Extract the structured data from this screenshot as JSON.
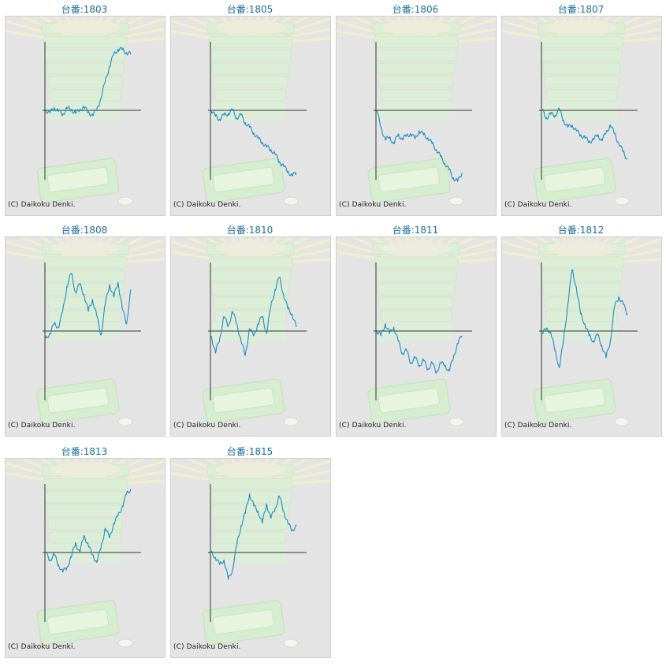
{
  "colors": {
    "title": "#1d6f9a",
    "line": "#1a8ec6",
    "axis": "#333333",
    "background": "#e4e4e4"
  },
  "copyright": "(C) Daikoku Denki.",
  "chart_data": [
    {
      "type": "line",
      "title": "台番:1803",
      "x": [
        0,
        5,
        10,
        15,
        20,
        25,
        30,
        35,
        40,
        45,
        50,
        55,
        60,
        65,
        70,
        75,
        80,
        85,
        90,
        95,
        100
      ],
      "y": [
        0,
        -0.5,
        0.6,
        -0.2,
        -0.8,
        0.4,
        0.2,
        -0.6,
        0.1,
        0.7,
        -0.4,
        -1.0,
        0.2,
        2.5,
        6.0,
        9.0,
        11.5,
        12.5,
        12.4,
        11.8,
        11.5
      ]
    },
    {
      "type": "line",
      "title": "台番:1805",
      "x": [
        0,
        5,
        10,
        15,
        20,
        25,
        30,
        35,
        40,
        45,
        50,
        55,
        60,
        65,
        70,
        75,
        80,
        85,
        90,
        95,
        100
      ],
      "y": [
        0,
        -1.2,
        -1.8,
        -1.0,
        -0.6,
        0.0,
        -1.5,
        -1.0,
        -2.5,
        -3.5,
        -4.6,
        -5.8,
        -6.5,
        -7.5,
        -8.0,
        -9.0,
        -10.5,
        -11.4,
        -12.5,
        -13.4,
        -12.8
      ]
    },
    {
      "type": "line",
      "title": "台番:1806",
      "x": [
        0,
        5,
        10,
        15,
        20,
        25,
        30,
        35,
        40,
        45,
        50,
        55,
        60,
        65,
        70,
        75,
        80,
        85,
        90,
        95,
        100
      ],
      "y": [
        0,
        -3.5,
        -6.0,
        -5.5,
        -6.8,
        -5.0,
        -5.8,
        -5.2,
        -4.8,
        -5.8,
        -4.2,
        -5.0,
        -5.6,
        -6.8,
        -8.0,
        -9.5,
        -10.8,
        -12.2,
        -13.8,
        -14.6,
        -12.8
      ]
    },
    {
      "type": "line",
      "title": "台番:1807",
      "x": [
        0,
        5,
        10,
        15,
        20,
        25,
        30,
        35,
        40,
        45,
        50,
        55,
        60,
        65,
        70,
        75,
        80,
        85,
        90,
        95,
        100
      ],
      "y": [
        0,
        -1.5,
        -0.8,
        -1.0,
        0.2,
        -2.0,
        -3.5,
        -3.0,
        -4.2,
        -5.0,
        -5.6,
        -6.4,
        -6.0,
        -5.0,
        -6.2,
        -4.5,
        -3.0,
        -4.8,
        -6.8,
        -8.5,
        -10.0
      ]
    },
    {
      "type": "line",
      "title": "台番:1808",
      "x": [
        0,
        5,
        10,
        15,
        20,
        25,
        30,
        35,
        40,
        45,
        50,
        55,
        60,
        65,
        70,
        75,
        80,
        85,
        90,
        95,
        100
      ],
      "y": [
        -1.5,
        -0.5,
        1.5,
        0.8,
        4.0,
        9.2,
        11.8,
        8.0,
        9.5,
        7.5,
        4.0,
        6.5,
        3.0,
        -0.8,
        5.5,
        9.5,
        7.0,
        10.0,
        4.5,
        1.5,
        8.5
      ]
    },
    {
      "type": "line",
      "title": "台番:1810",
      "x": [
        0,
        5,
        10,
        15,
        20,
        25,
        30,
        35,
        40,
        45,
        50,
        55,
        60,
        65,
        70,
        75,
        80,
        85,
        90,
        95,
        100
      ],
      "y": [
        -1.0,
        -4.5,
        -1.5,
        3.0,
        1.0,
        4.0,
        1.5,
        -2.0,
        -5.0,
        0.5,
        -1.0,
        1.5,
        3.0,
        -0.5,
        5.0,
        8.5,
        11.0,
        7.5,
        4.5,
        3.5,
        0.8
      ]
    },
    {
      "type": "line",
      "title": "台番:1811",
      "x": [
        0,
        5,
        10,
        15,
        20,
        25,
        30,
        35,
        40,
        45,
        50,
        55,
        60,
        65,
        70,
        75,
        80,
        85,
        90,
        95,
        100
      ],
      "y": [
        0,
        -1.0,
        1.5,
        -0.5,
        0.8,
        -2.0,
        -4.5,
        -4.0,
        -6.5,
        -5.5,
        -7.0,
        -6.0,
        -7.8,
        -6.5,
        -8.5,
        -6.5,
        -7.0,
        -8.2,
        -5.5,
        -2.5,
        -1.0
      ]
    },
    {
      "type": "line",
      "title": "台番:1812",
      "x": [
        0,
        5,
        10,
        15,
        20,
        25,
        30,
        35,
        40,
        45,
        50,
        55,
        60,
        65,
        70,
        75,
        80,
        85,
        90,
        95,
        100
      ],
      "y": [
        -0.5,
        0.5,
        -0.3,
        -4.0,
        -7.5,
        -2.0,
        5.5,
        12.5,
        9.0,
        3.5,
        1.5,
        -1.0,
        -2.0,
        -0.8,
        -3.0,
        -5.5,
        -2.0,
        5.0,
        7.0,
        5.5,
        3.5
      ]
    },
    {
      "type": "line",
      "title": "台番:1813",
      "x": [
        0,
        5,
        10,
        15,
        20,
        25,
        30,
        35,
        40,
        45,
        50,
        55,
        60,
        65,
        70,
        75,
        80,
        85,
        90,
        95,
        100
      ],
      "y": [
        0,
        -1.5,
        -0.5,
        -2.5,
        -4.0,
        -3.0,
        -1.0,
        2.0,
        0.0,
        3.5,
        1.5,
        -0.5,
        -2.0,
        1.0,
        5.0,
        3.0,
        6.0,
        7.5,
        9.5,
        12.0,
        13.0
      ]
    },
    {
      "type": "line",
      "title": "台番:1815",
      "x": [
        0,
        5,
        10,
        15,
        20,
        25,
        30,
        35,
        40,
        45,
        50,
        55,
        60,
        65,
        70,
        75,
        80,
        85,
        90,
        95,
        100
      ],
      "y": [
        0,
        -1.0,
        -2.5,
        -1.5,
        -5.5,
        -3.5,
        1.5,
        5.5,
        8.0,
        12.0,
        9.5,
        8.5,
        6.0,
        10.0,
        7.0,
        9.0,
        11.5,
        8.5,
        6.0,
        4.5,
        5.5
      ]
    }
  ]
}
